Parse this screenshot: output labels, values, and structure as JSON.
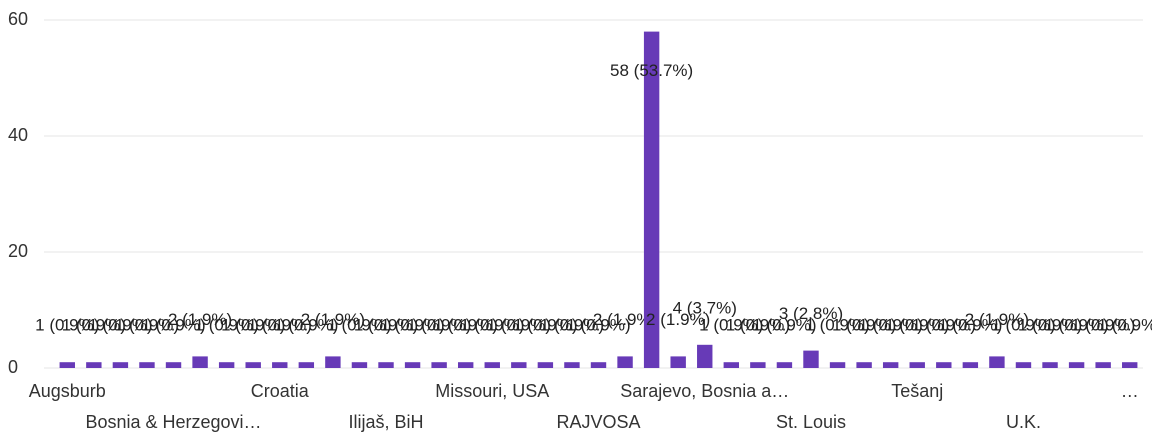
{
  "chart_data": {
    "type": "bar",
    "categories": [
      "Augsburb",
      null,
      null,
      null,
      "Bosnia & Herzegovi…",
      null,
      null,
      null,
      "Croatia",
      null,
      null,
      null,
      "Ilijaš, BiH",
      null,
      null,
      null,
      "Missouri, USA",
      null,
      null,
      null,
      "RAJVOSA",
      null,
      null,
      null,
      "Sarajevo, Bosnia a…",
      null,
      null,
      null,
      "St. Louis",
      null,
      null,
      null,
      "Tešanj",
      null,
      null,
      null,
      "U.K.",
      null,
      null,
      null,
      "…"
    ],
    "values": [
      1,
      1,
      1,
      1,
      1,
      2,
      1,
      1,
      1,
      1,
      2,
      1,
      1,
      1,
      1,
      1,
      1,
      1,
      1,
      1,
      1,
      2,
      58,
      2,
      4,
      1,
      1,
      1,
      3,
      1,
      1,
      1,
      1,
      1,
      1,
      2,
      1,
      1,
      1,
      1,
      1
    ],
    "value_labels": [
      "1 (0.9%)",
      "1 (0.9%)",
      "1 (0.9%)",
      "1 (0.9%)",
      "1 (0.9%)",
      "2 (1.9%)",
      "1 (0.9%)",
      "1 (0.9%)",
      "1 (0.9%)",
      "1 (0.9%)",
      "2 (1.9%)",
      "1 (0.9%)",
      "1 (0.9%)",
      "1 (0.9%)",
      "1 (0.9%)",
      "1 (0.9%)",
      "1 (0.9%)",
      "1 (0.9%)",
      "1 (0.9%)",
      "1 (0.9%)",
      "1 (0.9%)",
      "2 (1.9%)",
      "58 (53.7%)",
      "2 (1.9%)",
      "4 (3.7%)",
      "1 (0.9%)",
      "1 (0.9%)",
      "1 (0.9%)",
      "3 (2.8%)",
      "1 (0.9%)",
      "1 (0.9%)",
      "1 (0.9%)",
      "1 (0.9%)",
      "1 (0.9%)",
      "1 (0.9%)",
      "2 (1.9%)",
      "1 (0.9%)",
      "1 (0.9%)",
      "1 (0.9%)",
      "1 (0.9%)",
      "1 (0.9%)"
    ],
    "color": "#673ab7",
    "ylim": [
      0,
      60
    ],
    "yticks": [
      0,
      20,
      40,
      60
    ],
    "grid": true
  }
}
